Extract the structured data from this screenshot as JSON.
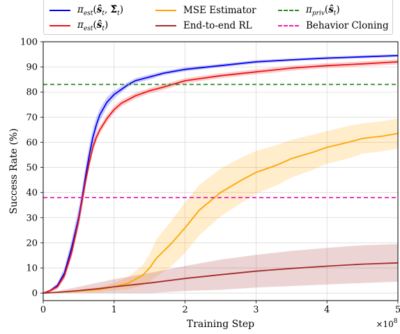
{
  "chart_data": {
    "type": "line",
    "xlabel": "Training Step",
    "ylabel": "Success Rate (%)",
    "x_multiplier_label": "×10^8",
    "xlim": [
      0,
      5
    ],
    "ylim": [
      -3,
      100
    ],
    "xticks": [
      "0",
      "1",
      "2",
      "3",
      "4",
      "5"
    ],
    "yticks": [
      "0",
      "10",
      "20",
      "30",
      "40",
      "50",
      "60",
      "70",
      "80",
      "90",
      "100"
    ],
    "grid": true,
    "legend_position": "top",
    "series": [
      {
        "name": "π_est(ŝ_t, Σ̂_t)",
        "color": "#0000ee",
        "style": "solid",
        "x": [
          0,
          0.1,
          0.2,
          0.3,
          0.4,
          0.5,
          0.55,
          0.6,
          0.65,
          0.7,
          0.75,
          0.8,
          0.9,
          1.0,
          1.1,
          1.2,
          1.3,
          1.5,
          1.7,
          2.0,
          2.5,
          3.0,
          3.5,
          4.0,
          4.5,
          5.0
        ],
        "y": [
          0,
          1,
          3,
          8,
          18,
          30,
          38,
          47,
          55,
          62,
          67,
          71,
          76,
          79,
          81,
          83,
          84.5,
          86,
          87.5,
          89,
          90.5,
          92,
          92.8,
          93.5,
          94,
          94.5
        ],
        "band": [
          0,
          0.5,
          1,
          2,
          3,
          4,
          4,
          4,
          4,
          3.5,
          3,
          2.5,
          2,
          1.5,
          1.2,
          1,
          1,
          1,
          0.8,
          0.8,
          0.7,
          0.7,
          0.6,
          0.6,
          0.6,
          0.6
        ]
      },
      {
        "name": "π_est(ŝ_t)",
        "color": "#ee1111",
        "style": "solid",
        "x": [
          0,
          0.1,
          0.2,
          0.3,
          0.4,
          0.5,
          0.55,
          0.6,
          0.65,
          0.7,
          0.75,
          0.8,
          0.9,
          1.0,
          1.1,
          1.2,
          1.3,
          1.5,
          1.7,
          2.0,
          2.5,
          3.0,
          3.5,
          4.0,
          4.5,
          5.0
        ],
        "y": [
          0,
          1,
          2.5,
          7,
          16,
          29,
          37,
          45,
          52,
          58,
          62,
          65,
          69.5,
          73,
          75.5,
          77,
          78.5,
          80.5,
          82,
          84.5,
          86.5,
          88,
          89.5,
          90.5,
          91.2,
          92
        ],
        "band": [
          0,
          0.5,
          1,
          1.5,
          2,
          2,
          2,
          2,
          2,
          2,
          1.8,
          1.6,
          1.5,
          1.4,
          1.3,
          1.2,
          1.2,
          1.1,
          1.1,
          1,
          1,
          1,
          1,
          1,
          1,
          1
        ]
      },
      {
        "name": "MSE Estimator",
        "color": "#ffa500",
        "style": "solid",
        "x": [
          0,
          0.2,
          0.5,
          0.8,
          1.0,
          1.2,
          1.4,
          1.5,
          1.6,
          1.8,
          2.0,
          2.2,
          2.5,
          2.8,
          3.0,
          3.3,
          3.5,
          3.8,
          4.0,
          4.3,
          4.5,
          4.8,
          5.0
        ],
        "y": [
          0,
          0.3,
          0.8,
          1.5,
          2.5,
          4,
          7,
          10,
          14,
          19.5,
          26,
          33,
          40,
          45,
          48,
          51,
          53.5,
          56,
          58,
          60,
          61.5,
          62.5,
          63.5
        ],
        "band": [
          0,
          0.2,
          0.5,
          1,
          1.5,
          2.5,
          4,
          5.5,
          7.5,
          9,
          10,
          10,
          9.5,
          9,
          8.5,
          8,
          7.5,
          7,
          6.5,
          6.5,
          6,
          6,
          6
        ]
      },
      {
        "name": "End-to-end RL",
        "color": "#a52a2a",
        "style": "solid",
        "x": [
          0,
          0.2,
          0.5,
          0.8,
          1.0,
          1.5,
          2.0,
          2.5,
          3.0,
          3.5,
          4.0,
          4.5,
          5.0
        ],
        "y": [
          0,
          0.3,
          1,
          1.8,
          2.5,
          4,
          5.8,
          7.3,
          8.7,
          9.8,
          10.7,
          11.5,
          12
        ],
        "band": [
          0,
          0.5,
          1.5,
          2.5,
          3,
          4,
          5,
          6,
          6.5,
          7,
          7.3,
          7.5,
          7.5
        ]
      },
      {
        "name": "π_priv(ŝ_t)",
        "color": "#228b22",
        "style": "dashed",
        "x": [
          0,
          5
        ],
        "y": [
          83,
          83
        ]
      },
      {
        "name": "Behavior Cloning",
        "color": "#ee1ab4",
        "style": "dashed",
        "x": [
          0,
          5
        ],
        "y": [
          38,
          38
        ]
      }
    ]
  }
}
